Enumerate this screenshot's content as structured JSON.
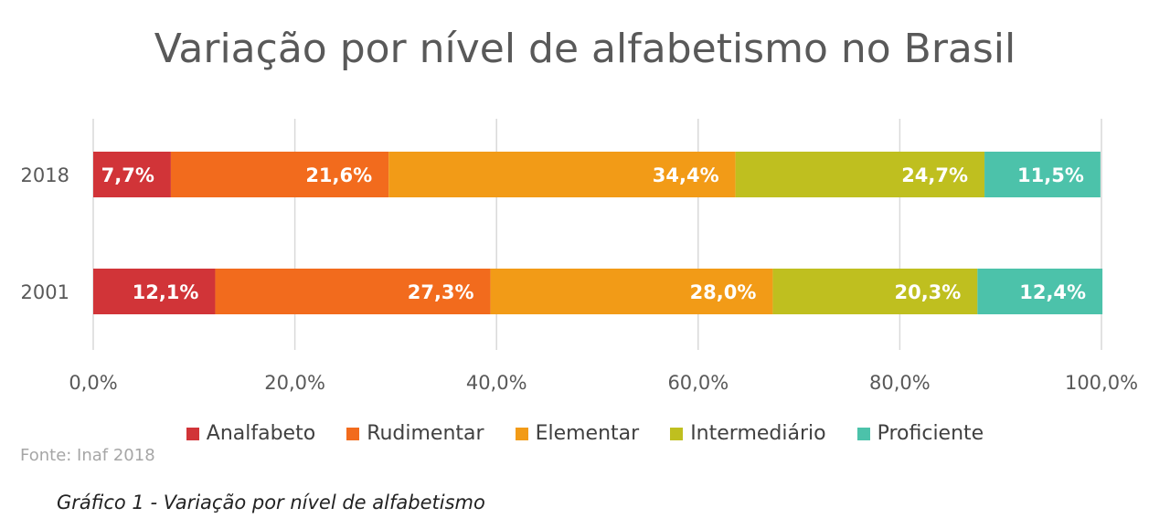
{
  "chart_data": {
    "type": "bar",
    "orientation": "horizontal",
    "stacked": true,
    "title": "Variação por nível de alfabetismo no Brasil",
    "categories": [
      "2018",
      "2001"
    ],
    "series": [
      {
        "name": "Analfabeto",
        "color": "#d13438",
        "values": [
          7.7,
          12.1
        ],
        "labels": [
          "7,7%",
          "12,1%"
        ]
      },
      {
        "name": "Rudimentar",
        "color": "#f26b1d",
        "values": [
          21.6,
          27.3
        ],
        "labels": [
          "21,6%",
          "27,3%"
        ]
      },
      {
        "name": "Elementar",
        "color": "#f29b17",
        "values": [
          34.4,
          28.0
        ],
        "labels": [
          "34,4%",
          "28,0%"
        ]
      },
      {
        "name": "Intermediário",
        "color": "#bfbf1f",
        "values": [
          24.7,
          20.3
        ],
        "labels": [
          "24,7%",
          "20,3%"
        ]
      },
      {
        "name": "Proficiente",
        "color": "#4cc2aa",
        "values": [
          11.5,
          12.4
        ],
        "labels": [
          "11,5%",
          "12,4%"
        ]
      }
    ],
    "xlim": [
      0,
      100
    ],
    "x_ticks": [
      0,
      20,
      40,
      60,
      80,
      100
    ],
    "x_tick_labels": [
      "0,0%",
      "20,0%",
      "40,0%",
      "60,0%",
      "80,0%",
      "100,0%"
    ],
    "grid": true,
    "legend_position": "bottom"
  },
  "source": "Fonte: Inaf 2018",
  "caption": "Gráfico  1 - Variação por nível de alfabetismo"
}
